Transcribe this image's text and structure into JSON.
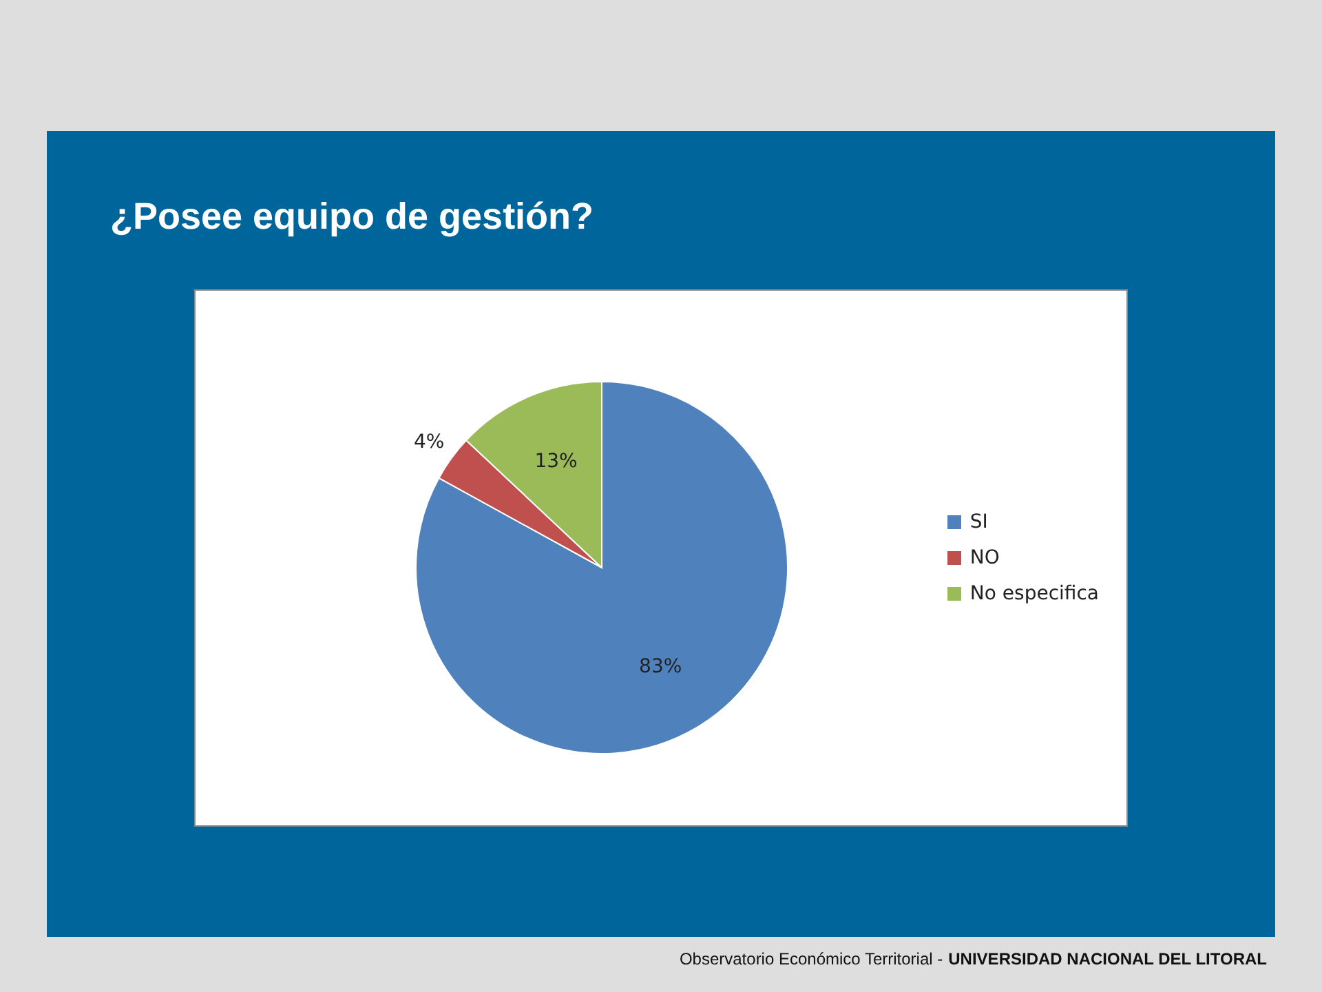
{
  "chart_data": {
    "type": "pie",
    "title": "¿Posee equipo de gestión?",
    "categories": [
      "SI",
      "NO",
      "No especifica"
    ],
    "values": [
      83,
      4,
      13
    ],
    "colors": [
      "#4f81bd",
      "#c0504d",
      "#9bbb59"
    ],
    "value_labels": [
      "83%",
      "4%",
      "13%"
    ],
    "legend": "right",
    "annotations": [
      "Observatorio Económico Territorial -",
      "UNIVERSIDAD NACIONAL DEL LITORAL"
    ]
  }
}
